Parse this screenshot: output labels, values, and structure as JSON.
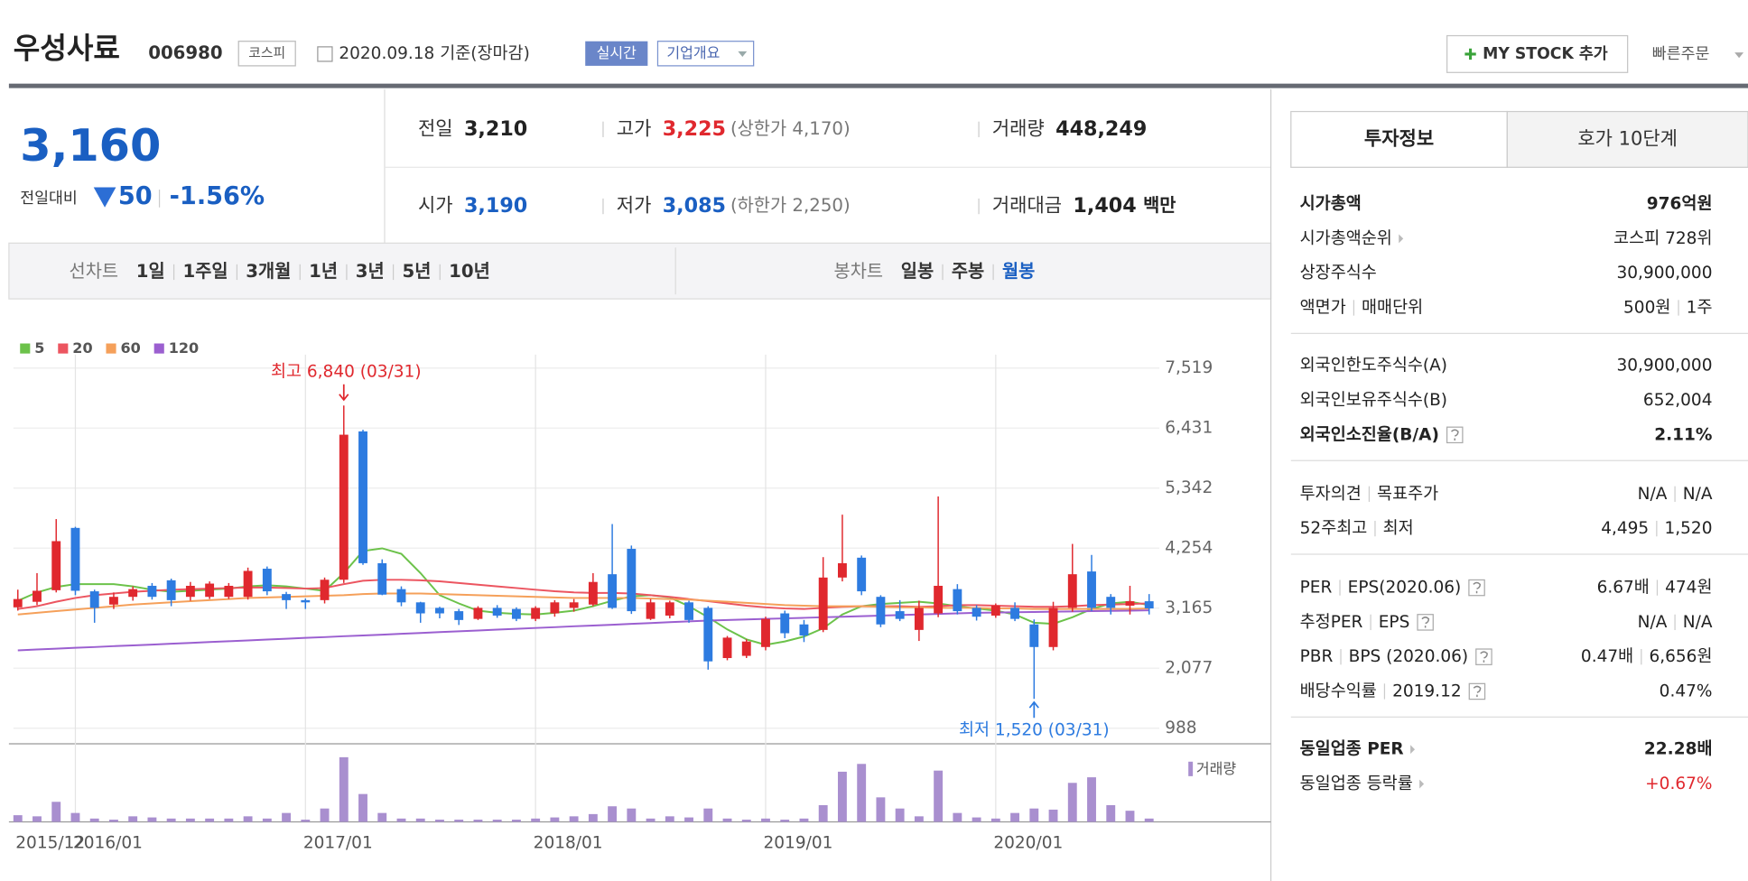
{
  "header": {
    "name": "우성사료",
    "code": "006980",
    "market": "코스피",
    "date": "2020.09.18 기준(장마감)",
    "realtime": "실시간",
    "overview": "기업개요",
    "my_stock": "MY STOCK 추가",
    "quick_order": "빠른주문"
  },
  "quote": {
    "price": "3,160",
    "change_label": "전일대비",
    "change": "50",
    "change_rate": "-1.56%",
    "color": "#1a5fc2",
    "items": [
      {
        "label": "전일",
        "value": "3,210"
      },
      {
        "label": "고가",
        "value": "3,225",
        "note": "(상한가 4,170)",
        "color": "#e0282e"
      },
      {
        "label": "거래량",
        "value": "448,249"
      },
      {
        "label": "시가",
        "value": "3,190",
        "color": "#1a5fc2"
      },
      {
        "label": "저가",
        "value": "3,085",
        "note": "(하한가 2,250)",
        "color": "#1a5fc2"
      },
      {
        "label": "거래대금",
        "value": "1,404",
        "unit": "백만"
      }
    ]
  },
  "period_tabs": {
    "line_label": "선차트",
    "line": [
      "1일",
      "1주일",
      "3개월",
      "1년",
      "3년",
      "5년",
      "10년"
    ],
    "candle_label": "봉차트",
    "candle": [
      "일봉",
      "주봉",
      "월봉"
    ],
    "selected_candle": 2
  },
  "info_tabs": [
    "투자정보",
    "호가 10단계"
  ],
  "info_groups": [
    [
      {
        "label": [
          "시가총액"
        ],
        "value": [
          "976억원"
        ],
        "bold": true
      },
      {
        "label": [
          "시가총액순위"
        ],
        "value": [
          "코스피 728위"
        ],
        "arrow": true
      },
      {
        "label": [
          "상장주식수"
        ],
        "value": [
          "30,900,000"
        ]
      },
      {
        "label": [
          "액면가",
          "매매단위"
        ],
        "value": [
          "500원",
          "1주"
        ]
      }
    ],
    [
      {
        "label": [
          "외국인한도주식수(A)"
        ],
        "value": [
          "30,900,000"
        ]
      },
      {
        "label": [
          "외국인보유주식수(B)"
        ],
        "value": [
          "652,004"
        ]
      },
      {
        "label": [
          "외국인소진율(B/A)"
        ],
        "value": [
          "2.11%"
        ],
        "bold": true,
        "help": true
      }
    ],
    [
      {
        "label": [
          "투자의견",
          "목표주가"
        ],
        "value": [
          "N/A",
          "N/A"
        ]
      },
      {
        "label": [
          "52주최고",
          "최저"
        ],
        "value": [
          "4,495",
          "1,520"
        ]
      }
    ],
    [
      {
        "label": [
          "PER",
          "EPS(2020.06)"
        ],
        "value": [
          "6.67배",
          "474원"
        ],
        "help": true
      },
      {
        "label": [
          "추정PER",
          "EPS"
        ],
        "value": [
          "N/A",
          "N/A"
        ],
        "help": true
      },
      {
        "label": [
          "PBR",
          "BPS (2020.06)"
        ],
        "value": [
          "0.47배",
          "6,656원"
        ],
        "help": true
      },
      {
        "label": [
          "배당수익률",
          "2019.12"
        ],
        "value": [
          "0.47%"
        ],
        "help": true
      }
    ],
    [
      {
        "label": [
          "동일업종 PER"
        ],
        "value": [
          "22.28배"
        ],
        "bold": true,
        "arrow": true
      },
      {
        "label": [
          "동일업종 등락률"
        ],
        "value": [
          "+0.67%"
        ],
        "arrow": true,
        "color": "#e0282e"
      }
    ]
  ],
  "chart_data": {
    "type": "candlestick",
    "grid": true,
    "up_color": "#e0282e",
    "down_color": "#2d7be0",
    "categories": [
      null,
      null,
      "2015/12",
      "2016/01",
      null,
      null,
      null,
      null,
      null,
      null,
      null,
      null,
      null,
      null,
      null,
      "2017/01",
      null,
      null,
      null,
      null,
      null,
      null,
      null,
      null,
      null,
      null,
      null,
      "2018/01",
      null,
      null,
      null,
      null,
      null,
      null,
      null,
      null,
      null,
      null,
      null,
      "2019/01",
      null,
      null,
      null,
      null,
      null,
      null,
      null,
      null,
      null,
      null,
      null,
      "2020/01",
      null,
      null,
      null,
      null,
      null,
      null,
      null,
      null
    ],
    "open": [
      3180,
      3280,
      3490,
      4620,
      3470,
      3230,
      3370,
      3570,
      3670,
      3370,
      3370,
      3370,
      3370,
      3880,
      3420,
      3310,
      3310,
      3680,
      6370,
      3980,
      3510,
      3270,
      3170,
      3110,
      2970,
      3170,
      3150,
      2970,
      3070,
      3170,
      3230,
      3780,
      4240,
      2970,
      3030,
      3270,
      3170,
      2260,
      2300,
      2460,
      3070,
      2870,
      2770,
      3720,
      4080,
      3370,
      3110,
      2770,
      3070,
      3510,
      3170,
      3030,
      3170,
      2870,
      2460,
      3170,
      3830,
      3370,
      3210,
      3290
    ],
    "high": [
      3500,
      3800,
      4780,
      4640,
      3500,
      3450,
      3560,
      3620,
      3700,
      3640,
      3650,
      3620,
      3900,
      3920,
      3460,
      3340,
      3720,
      6840,
      6400,
      4050,
      3560,
      3280,
      3190,
      3150,
      3200,
      3220,
      3180,
      3200,
      3310,
      3330,
      3800,
      4690,
      4300,
      3330,
      3300,
      3300,
      3200,
      2660,
      2600,
      3010,
      3120,
      2950,
      4090,
      4860,
      4120,
      3400,
      3310,
      3300,
      5190,
      3600,
      3220,
      3250,
      3270,
      2960,
      3280,
      4330,
      4130,
      3420,
      3570,
      3420
    ],
    "low": [
      3120,
      3220,
      3450,
      3400,
      2900,
      3150,
      3300,
      3320,
      3200,
      3300,
      3330,
      3330,
      3320,
      3400,
      3150,
      3150,
      3250,
      3620,
      3950,
      3400,
      3200,
      2900,
      2980,
      2860,
      2950,
      2990,
      2930,
      2930,
      3010,
      3100,
      3200,
      3150,
      3060,
      2950,
      2980,
      2900,
      2050,
      2220,
      2260,
      2400,
      2620,
      2550,
      2730,
      3650,
      3400,
      2820,
      2930,
      2570,
      3000,
      3050,
      2940,
      2990,
      2930,
      1520,
      2400,
      3100,
      3110,
      3050,
      3050,
      3050
    ],
    "close": [
      3330,
      3480,
      4380,
      3480,
      3170,
      3370,
      3510,
      3370,
      3310,
      3570,
      3610,
      3570,
      3840,
      3470,
      3310,
      3270,
      3680,
      6310,
      3980,
      3410,
      3270,
      3070,
      3070,
      2950,
      3170,
      3030,
      2970,
      3170,
      3270,
      3270,
      3640,
      3170,
      3110,
      3270,
      3270,
      2950,
      2200,
      2630,
      2560,
      2970,
      2710,
      2670,
      3720,
      3980,
      3470,
      2870,
      2970,
      3170,
      3570,
      3110,
      3010,
      3210,
      2970,
      2460,
      3170,
      3780,
      3170,
      3170,
      3290,
      3160
    ],
    "moving_averages": [
      {
        "name": "5",
        "color": "#6cc24a",
        "values": [
          3300,
          3450,
          3550,
          3600,
          3600,
          3600,
          3560,
          3500,
          3460,
          3480,
          3500,
          3520,
          3560,
          3580,
          3560,
          3520,
          3480,
          3800,
          4200,
          4250,
          4150,
          3800,
          3400,
          3250,
          3120,
          3080,
          3060,
          3050,
          3080,
          3120,
          3200,
          3300,
          3380,
          3400,
          3360,
          3200,
          3000,
          2780,
          2600,
          2500,
          2560,
          2650,
          2800,
          3050,
          3200,
          3240,
          3260,
          3280,
          3250,
          3200,
          3160,
          3120,
          3050,
          2900,
          2880,
          3000,
          3150,
          3250,
          3280,
          3220
        ]
      },
      {
        "name": "20",
        "color": "#ec5560",
        "values": [
          3150,
          3200,
          3280,
          3350,
          3400,
          3430,
          3460,
          3480,
          3500,
          3510,
          3520,
          3530,
          3540,
          3540,
          3530,
          3520,
          3530,
          3600,
          3660,
          3680,
          3680,
          3670,
          3650,
          3620,
          3590,
          3560,
          3530,
          3500,
          3470,
          3450,
          3440,
          3440,
          3430,
          3400,
          3370,
          3330,
          3290,
          3250,
          3210,
          3180,
          3160,
          3150,
          3170,
          3190,
          3200,
          3200,
          3200,
          3190,
          3200,
          3220,
          3220,
          3210,
          3200,
          3190,
          3190,
          3200,
          3220,
          3230,
          3240,
          3250
        ]
      },
      {
        "name": "60",
        "color": "#f5a05a",
        "values": [
          3050,
          3080,
          3110,
          3140,
          3170,
          3200,
          3230,
          3250,
          3270,
          3290,
          3310,
          3330,
          3350,
          3360,
          3370,
          3380,
          3390,
          3400,
          3420,
          3430,
          3430,
          3430,
          3420,
          3410,
          3400,
          3390,
          3380,
          3370,
          3360,
          3350,
          3350,
          3350,
          3350,
          3340,
          3330,
          3320,
          3300,
          3280,
          3260,
          3240,
          3220,
          3210,
          3200,
          3200,
          3200,
          3190,
          3180,
          3180,
          3170,
          3170,
          3170,
          3160,
          3160,
          3150,
          3150,
          3150,
          3150,
          3150,
          3150,
          3160
        ]
      },
      {
        "name": "120",
        "color": "#9b5fd0",
        "values": [
          2400,
          2415,
          2430,
          2445,
          2460,
          2475,
          2490,
          2505,
          2520,
          2535,
          2550,
          2565,
          2580,
          2595,
          2610,
          2625,
          2640,
          2655,
          2670,
          2685,
          2700,
          2715,
          2730,
          2745,
          2760,
          2775,
          2790,
          2805,
          2820,
          2835,
          2850,
          2865,
          2880,
          2895,
          2910,
          2925,
          2940,
          2950,
          2960,
          2970,
          2980,
          2990,
          3000,
          3010,
          3020,
          3030,
          3040,
          3050,
          3060,
          3070,
          3080,
          3085,
          3090,
          3095,
          3100,
          3105,
          3110,
          3115,
          3120,
          3125
        ]
      }
    ],
    "volume": {
      "name": "거래량",
      "color": "#a98fcf",
      "ylim": [
        0,
        60
      ],
      "values": [
        6,
        5,
        18,
        8,
        3,
        2,
        5,
        4,
        3,
        3,
        3,
        3,
        5,
        3,
        8,
        2,
        12,
        58,
        25,
        8,
        3,
        3,
        2,
        2,
        2,
        2,
        2,
        3,
        4,
        5,
        7,
        14,
        12,
        3,
        5,
        4,
        12,
        3,
        2,
        3,
        2,
        3,
        15,
        45,
        52,
        22,
        12,
        5,
        46,
        8,
        4,
        3,
        8,
        12,
        11,
        35,
        40,
        15,
        10,
        3
      ]
    },
    "ylim": [
      745,
      7762
    ],
    "yticks": [
      {
        "value": 988,
        "label": "988"
      },
      {
        "value": 2077,
        "label": "2,077"
      },
      {
        "value": 3165,
        "label": "3,165"
      },
      {
        "value": 4254,
        "label": "4,254"
      },
      {
        "value": 5342,
        "label": "5,342"
      },
      {
        "value": 6431,
        "label": "6,431"
      },
      {
        "value": 7519,
        "label": "7,519"
      }
    ],
    "annotations": [
      {
        "text": "최고 6,840 (03/31)",
        "color": "#e0282e"
      },
      {
        "text": "최저 1,520 (03/31)",
        "color": "#2d7be0"
      }
    ]
  }
}
